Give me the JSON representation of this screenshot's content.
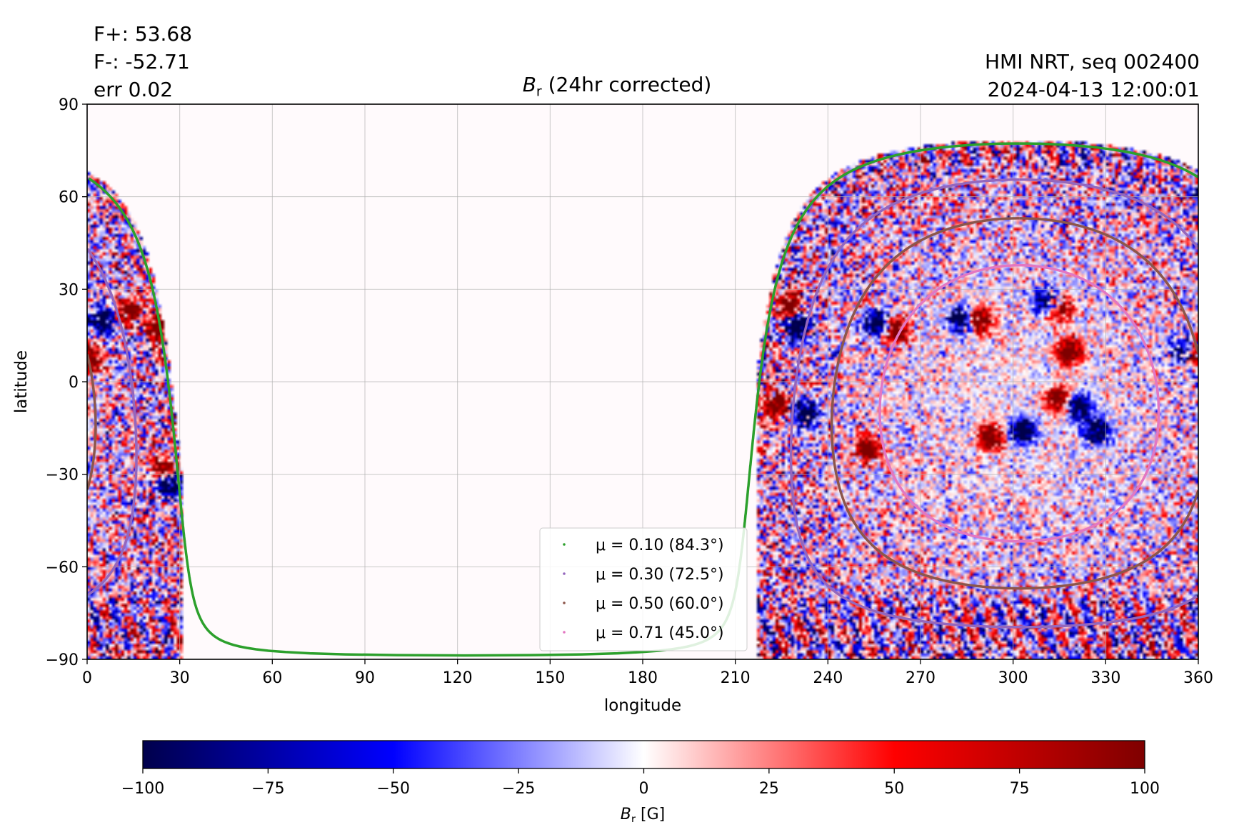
{
  "header": {
    "flux_pos": "F+: 53.68",
    "flux_neg": "F-: -52.71",
    "error": "err 0.02",
    "source": "HMI NRT, seq 002400",
    "timestamp": "2024-04-13 12:00:01",
    "title_symbol": "B",
    "title_sub": "r",
    "title_rest": " (24hr corrected)"
  },
  "chart_data": {
    "type": "heatmap",
    "title": "B_r (24hr corrected)",
    "xlabel": "longitude",
    "ylabel": "latitude",
    "xlim": [
      0,
      360
    ],
    "ylim": [
      -90,
      90
    ],
    "xticks": [
      "0",
      "30",
      "60",
      "90",
      "120",
      "150",
      "180",
      "210",
      "240",
      "270",
      "300",
      "330",
      "360"
    ],
    "yticks": [
      "−90",
      "−60",
      "−30",
      "0",
      "30",
      "60",
      "90"
    ],
    "xtick_values": [
      0,
      30,
      60,
      90,
      120,
      150,
      180,
      210,
      240,
      270,
      300,
      330,
      360
    ],
    "ytick_values": [
      -90,
      -60,
      -30,
      0,
      30,
      60,
      90
    ],
    "grid": true,
    "disk_center": {
      "longitude": 302,
      "latitude": -7
    },
    "covered_longitude_ranges": [
      [
        0,
        31
      ],
      [
        217,
        360
      ]
    ],
    "colormap": {
      "name": "seismic",
      "min": -100,
      "max": 100,
      "label": "B_r [G]",
      "ticks": [
        "−100",
        "−75",
        "−50",
        "−25",
        "0",
        "25",
        "50",
        "75",
        "100"
      ],
      "tick_values": [
        -100,
        -75,
        -50,
        -25,
        0,
        25,
        50,
        75,
        100
      ]
    },
    "series": [
      {
        "name": "μ = 0.10 (84.3°)",
        "mu": 0.1,
        "angle_deg": 84.3,
        "color": "#2ca02c"
      },
      {
        "name": "μ = 0.30 (72.5°)",
        "mu": 0.3,
        "angle_deg": 72.5,
        "color": "#9467bd"
      },
      {
        "name": "μ = 0.50 (60.0°)",
        "mu": 0.5,
        "angle_deg": 60.0,
        "color": "#8c564b"
      },
      {
        "name": "μ = 0.71 (45.0°)",
        "mu": 0.71,
        "angle_deg": 45.0,
        "color": "#e377c2"
      }
    ],
    "legend_position": "lower center",
    "active_regions": [
      {
        "lon": 227,
        "lat": 25,
        "sign": "positive"
      },
      {
        "lon": 230,
        "lat": 18,
        "sign": "negative"
      },
      {
        "lon": 223,
        "lat": -8,
        "sign": "positive"
      },
      {
        "lon": 233,
        "lat": -10,
        "sign": "negative"
      },
      {
        "lon": 253,
        "lat": -22,
        "sign": "positive"
      },
      {
        "lon": 262,
        "lat": 17,
        "sign": "positive"
      },
      {
        "lon": 256,
        "lat": 19,
        "sign": "negative"
      },
      {
        "lon": 283,
        "lat": 20,
        "sign": "negative"
      },
      {
        "lon": 289,
        "lat": 20,
        "sign": "positive"
      },
      {
        "lon": 311,
        "lat": 26,
        "sign": "negative"
      },
      {
        "lon": 315,
        "lat": 24,
        "sign": "positive"
      },
      {
        "lon": 318,
        "lat": 10,
        "sign": "positive"
      },
      {
        "lon": 315,
        "lat": -6,
        "sign": "positive"
      },
      {
        "lon": 321,
        "lat": -8,
        "sign": "negative"
      },
      {
        "lon": 293,
        "lat": -18,
        "sign": "positive"
      },
      {
        "lon": 303,
        "lat": -16,
        "sign": "negative"
      },
      {
        "lon": 327,
        "lat": -16,
        "sign": "negative"
      },
      {
        "lon": 359,
        "lat": 9,
        "sign": "positive"
      },
      {
        "lon": 356,
        "lat": 10,
        "sign": "negative"
      },
      {
        "lon": 13,
        "lat": 23,
        "sign": "positive"
      },
      {
        "lon": 5,
        "lat": 20,
        "sign": "negative"
      },
      {
        "lon": 23,
        "lat": 17,
        "sign": "positive"
      },
      {
        "lon": 25,
        "lat": -28,
        "sign": "positive"
      },
      {
        "lon": 1,
        "lat": 8,
        "sign": "positive"
      },
      {
        "lon": 27,
        "lat": -33,
        "sign": "negative"
      }
    ]
  }
}
